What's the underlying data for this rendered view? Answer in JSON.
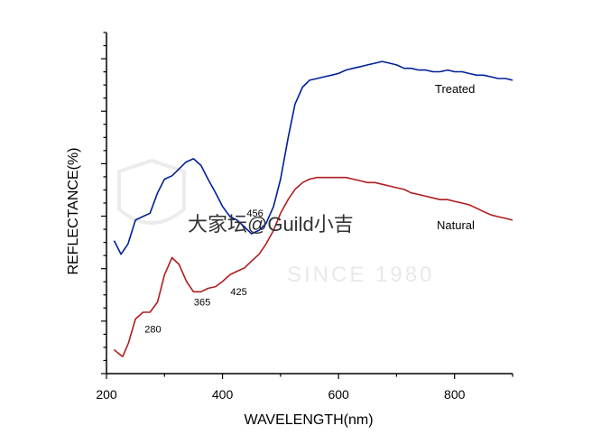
{
  "chart_data": {
    "type": "line",
    "title": "",
    "xlabel": "WAVELENGTH(nm)",
    "ylabel": "REFLECTANCE(%)",
    "xlim": [
      200,
      900
    ],
    "ylim": [
      0,
      100
    ],
    "xticks": [
      200,
      400,
      600,
      800
    ],
    "grid": false,
    "legend": "inline",
    "series": [
      {
        "name": "Treated",
        "color": "#00209a",
        "points": [
          [
            213,
            39
          ],
          [
            225,
            35
          ],
          [
            237,
            38
          ],
          [
            250,
            45
          ],
          [
            262,
            46
          ],
          [
            275,
            47
          ],
          [
            288,
            53
          ],
          [
            300,
            57
          ],
          [
            313,
            58
          ],
          [
            325,
            60
          ],
          [
            337,
            62
          ],
          [
            350,
            63
          ],
          [
            363,
            61
          ],
          [
            375,
            57
          ],
          [
            388,
            53
          ],
          [
            400,
            49
          ],
          [
            413,
            46
          ],
          [
            425,
            45
          ],
          [
            438,
            43
          ],
          [
            450,
            41
          ],
          [
            463,
            42
          ],
          [
            475,
            44
          ],
          [
            488,
            49
          ],
          [
            500,
            57
          ],
          [
            513,
            69
          ],
          [
            525,
            79
          ],
          [
            538,
            84
          ],
          [
            550,
            86
          ],
          [
            563,
            86.5
          ],
          [
            575,
            87
          ],
          [
            588,
            87.5
          ],
          [
            600,
            88
          ],
          [
            613,
            89
          ],
          [
            625,
            89.5
          ],
          [
            638,
            90
          ],
          [
            650,
            90.5
          ],
          [
            663,
            91
          ],
          [
            675,
            91.5
          ],
          [
            688,
            91
          ],
          [
            700,
            90.5
          ],
          [
            713,
            89.5
          ],
          [
            725,
            89.5
          ],
          [
            738,
            89
          ],
          [
            750,
            89
          ],
          [
            763,
            88.5
          ],
          [
            775,
            88.5
          ],
          [
            788,
            89
          ],
          [
            800,
            88.5
          ],
          [
            813,
            88.5
          ],
          [
            825,
            88
          ],
          [
            838,
            87.5
          ],
          [
            850,
            87.5
          ],
          [
            863,
            87
          ],
          [
            875,
            86.5
          ],
          [
            888,
            86.5
          ],
          [
            900,
            86
          ]
        ]
      },
      {
        "name": "Natural",
        "color": "#b01e1e",
        "points": [
          [
            213,
            7
          ],
          [
            220,
            6
          ],
          [
            228,
            5
          ],
          [
            238,
            9
          ],
          [
            250,
            16
          ],
          [
            263,
            18
          ],
          [
            275,
            18
          ],
          [
            288,
            21
          ],
          [
            300,
            29
          ],
          [
            313,
            34
          ],
          [
            325,
            32
          ],
          [
            338,
            27
          ],
          [
            350,
            24
          ],
          [
            363,
            24
          ],
          [
            375,
            25
          ],
          [
            388,
            25.5
          ],
          [
            400,
            27
          ],
          [
            413,
            29
          ],
          [
            425,
            30
          ],
          [
            438,
            31
          ],
          [
            450,
            33
          ],
          [
            463,
            35
          ],
          [
            475,
            38
          ],
          [
            488,
            42
          ],
          [
            500,
            47
          ],
          [
            513,
            51
          ],
          [
            525,
            54
          ],
          [
            538,
            56
          ],
          [
            550,
            57
          ],
          [
            563,
            57.5
          ],
          [
            575,
            57.5
          ],
          [
            588,
            57.5
          ],
          [
            600,
            57.5
          ],
          [
            613,
            57.5
          ],
          [
            625,
            57
          ],
          [
            638,
            56.5
          ],
          [
            650,
            56
          ],
          [
            663,
            56
          ],
          [
            675,
            55.5
          ],
          [
            688,
            55
          ],
          [
            700,
            54.5
          ],
          [
            713,
            54
          ],
          [
            725,
            53
          ],
          [
            738,
            52.5
          ],
          [
            750,
            52
          ],
          [
            763,
            51.5
          ],
          [
            775,
            51
          ],
          [
            788,
            51
          ],
          [
            800,
            50.5
          ],
          [
            813,
            50
          ],
          [
            825,
            49.5
          ],
          [
            838,
            48.5
          ],
          [
            850,
            47.5
          ],
          [
            863,
            46.5
          ],
          [
            875,
            46
          ],
          [
            888,
            45.5
          ],
          [
            900,
            45
          ]
        ]
      }
    ],
    "annotations": [
      {
        "text": "280",
        "x": 280,
        "y": 12
      },
      {
        "text": "365",
        "x": 365,
        "y": 20
      },
      {
        "text": "425",
        "x": 428,
        "y": 23
      },
      {
        "text": "456",
        "x": 456,
        "y": 46
      }
    ],
    "watermark": "大家坛@Guild小吉",
    "watermark_faint": "SINCE 1980"
  }
}
